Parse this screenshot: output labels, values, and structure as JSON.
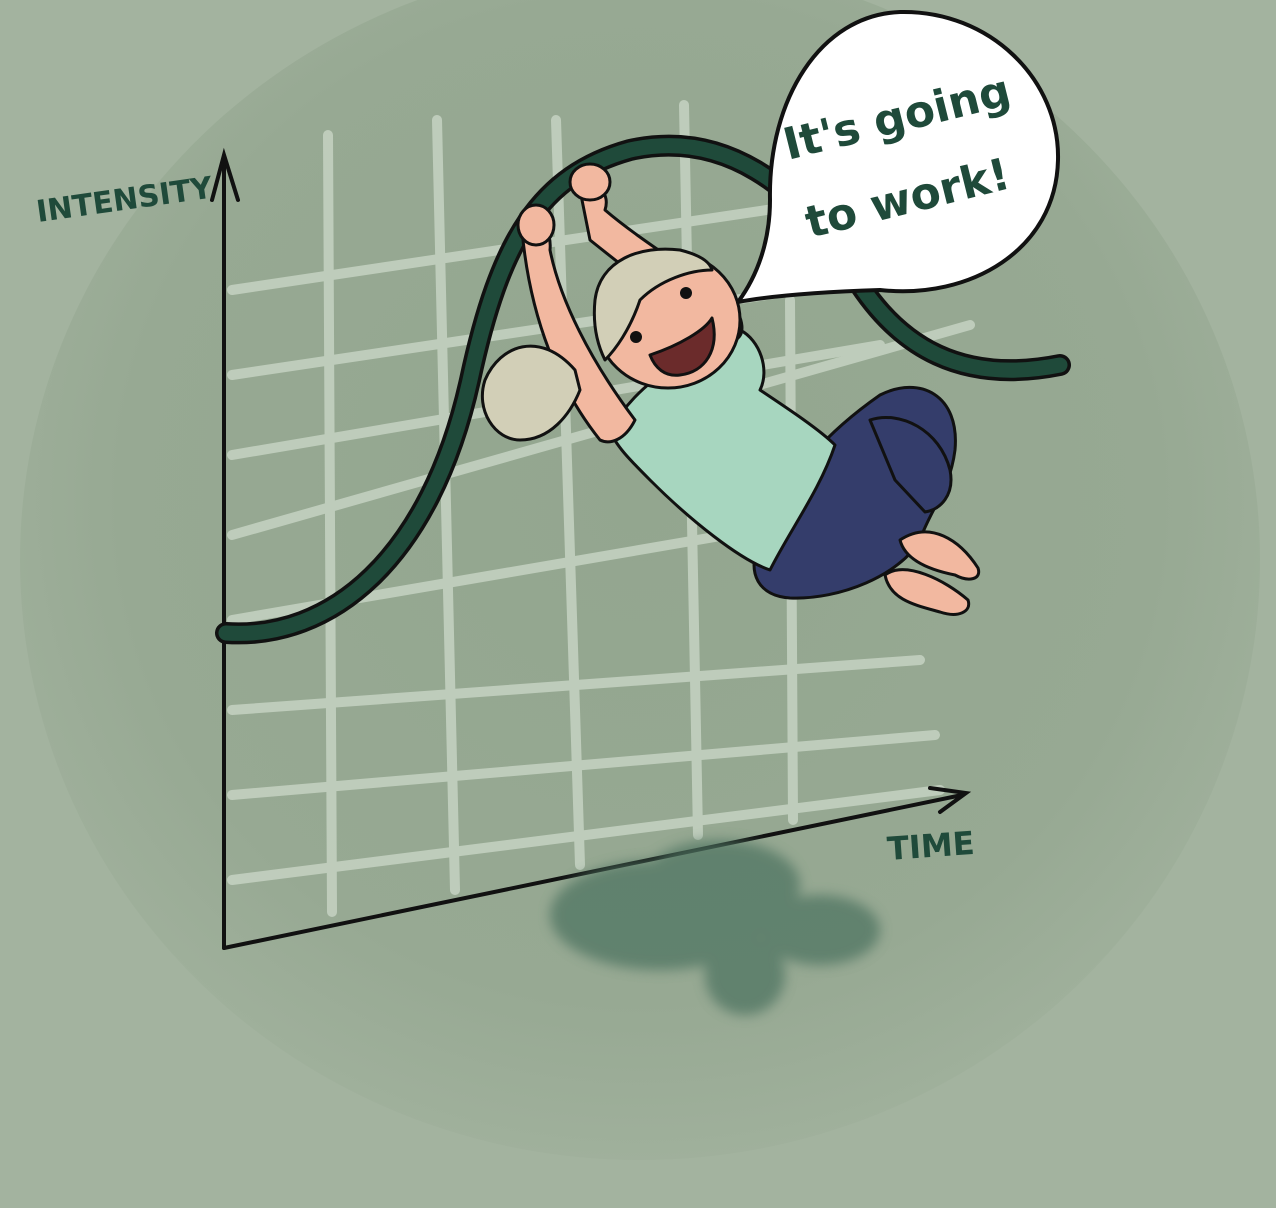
{
  "illustration": {
    "y_axis_label": "INTENSITY",
    "x_axis_label": "TIME",
    "speech_line_1": "It's going",
    "speech_line_2": "to work!"
  },
  "colors": {
    "background": "#a3b39f",
    "vignette": "#8fa38c",
    "grid_lines": "#c6d3c3",
    "curve": "#1f4a3a",
    "ink": "#111111",
    "shirt": "#a7d6bf",
    "pants": "#343d6b",
    "skin": "#f2b8a0",
    "hair": "#d2cfb7",
    "bubble": "#ffffff",
    "shadow": "#4f7562"
  },
  "icons": [
    "speech-bubble",
    "character-figure"
  ]
}
